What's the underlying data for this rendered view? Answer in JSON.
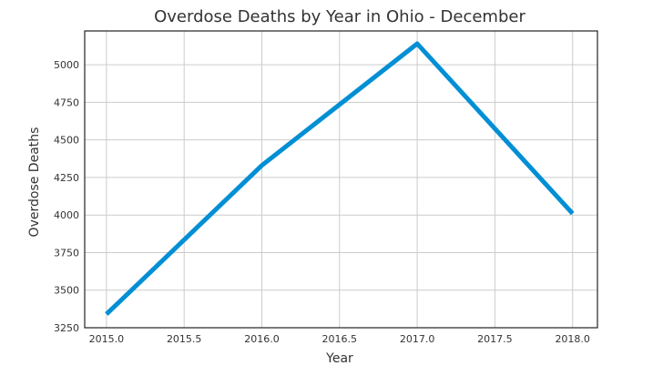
{
  "chart_data": {
    "type": "line",
    "title": "Overdose Deaths by Year in Ohio - December",
    "xlabel": "Year",
    "ylabel": "Overdose Deaths",
    "x": [
      2015,
      2016,
      2017,
      2018
    ],
    "series": [
      {
        "values": [
          3340,
          4330,
          5140,
          4010
        ],
        "color": "#008fd5"
      }
    ],
    "xlim": [
      2014.86,
      2018.16
    ],
    "ylim": [
      3250,
      5225
    ],
    "xticks": [
      2015.0,
      2015.5,
      2016.0,
      2016.5,
      2017.0,
      2017.5,
      2018.0
    ],
    "xtick_labels": [
      "2015.0",
      "2015.5",
      "2016.0",
      "2016.5",
      "2017.0",
      "2017.5",
      "2018.0"
    ],
    "yticks": [
      3250,
      3500,
      3750,
      4000,
      4250,
      4500,
      4750,
      5000
    ],
    "ytick_labels": [
      "3250",
      "3500",
      "3750",
      "4000",
      "4250",
      "4500",
      "4750",
      "5000"
    ],
    "grid": true,
    "legend": "none"
  }
}
